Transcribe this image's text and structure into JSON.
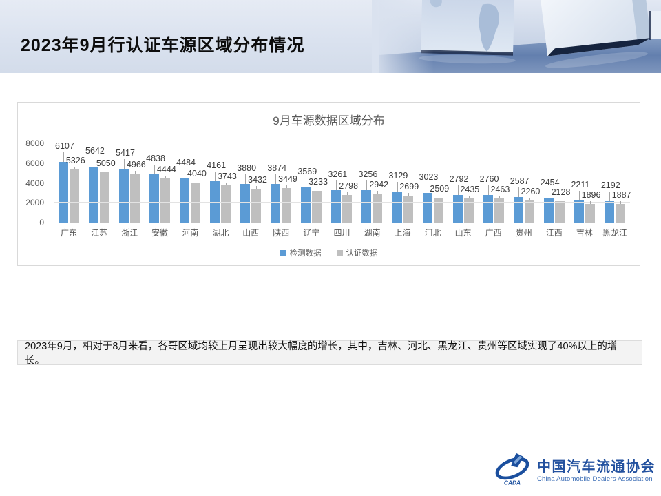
{
  "slide": {
    "title": "2023年9月行认证车源区域分布情况",
    "note": "2023年9月，相对于8月来看，各哥区域均较上月呈现出较大幅度的增长，其中，吉林、河北、黑龙江、贵州等区域实现了40%以上的增长。"
  },
  "chart_data": {
    "type": "bar",
    "title": "9月车源数据区域分布",
    "categories": [
      "广东",
      "江苏",
      "浙江",
      "安徽",
      "河南",
      "湖北",
      "山西",
      "陕西",
      "辽宁",
      "四川",
      "湖南",
      "上海",
      "河北",
      "山东",
      "广西",
      "贵州",
      "江西",
      "吉林",
      "黑龙江"
    ],
    "series": [
      {
        "name": "检测数据",
        "color": "#5B9BD5",
        "values": [
          6107,
          5642,
          5417,
          4838,
          4484,
          4161,
          3880,
          3874,
          3569,
          3261,
          3256,
          3129,
          3023,
          2792,
          2760,
          2587,
          2454,
          2211,
          2192
        ]
      },
      {
        "name": "认证数据",
        "color": "#BFBFBF",
        "values": [
          5326,
          5050,
          4966,
          4444,
          4040,
          3743,
          3432,
          3449,
          3233,
          2798,
          2942,
          2699,
          2509,
          2435,
          2463,
          2260,
          2128,
          1896,
          1887
        ]
      }
    ],
    "ylim": [
      0,
      8000
    ],
    "yticks": [
      0,
      2000,
      4000,
      6000,
      8000
    ],
    "grid": true,
    "legend_position": "bottom",
    "data_labels": true,
    "axis_text_color": "#595959",
    "label_text_color": "#3b3b3b"
  },
  "footer": {
    "logo_cn": "中国汽车流通协会",
    "logo_en": "China Automobile Dealers Association",
    "logo_mark": "CADA",
    "logo_color": "#1b4f9e"
  }
}
